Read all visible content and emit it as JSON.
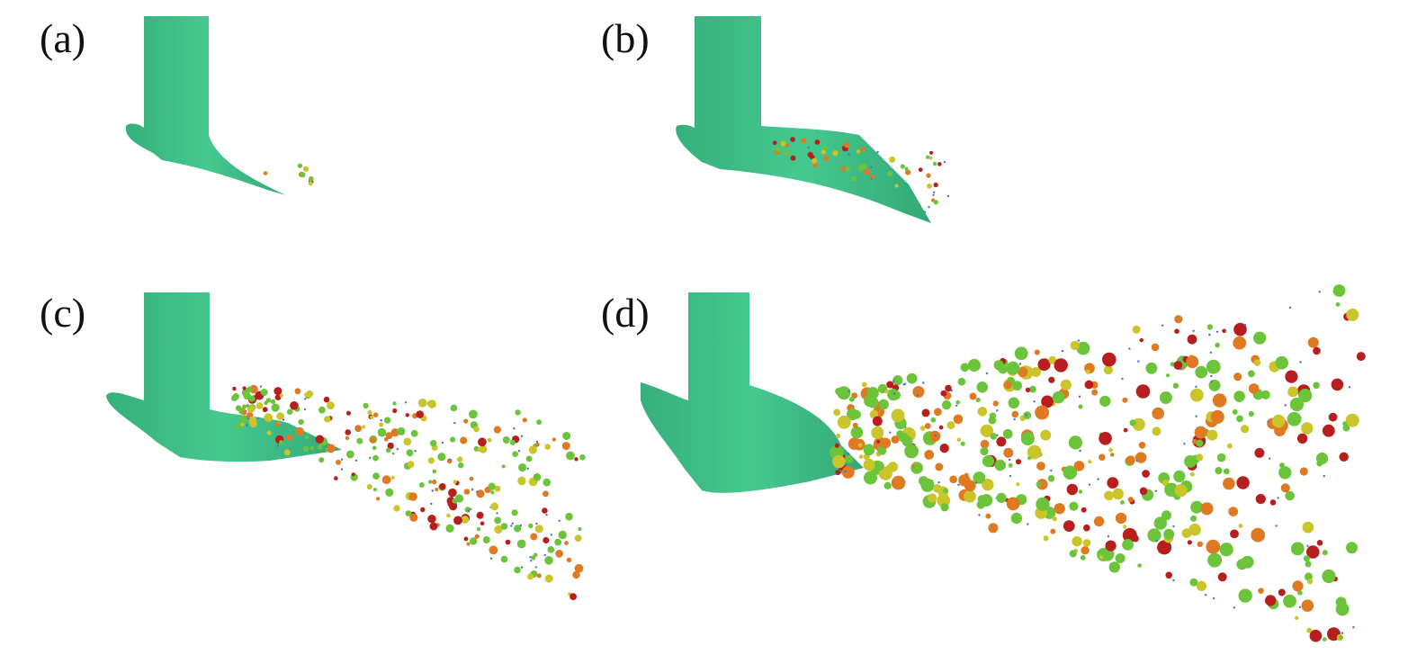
{
  "panels": [
    {
      "label": "(a)"
    },
    {
      "label": "(b)"
    },
    {
      "label": "(c)"
    },
    {
      "label": "(d)"
    }
  ],
  "colors": {
    "liquid": "#3dbf86",
    "liquid_dark": "#2a9a6a",
    "droplet_red": "#b81e1e",
    "droplet_orange": "#e07a22",
    "droplet_yellow": "#c9c52a",
    "droplet_green": "#6cc43a",
    "droplet_blue": "#4a6fc8"
  }
}
